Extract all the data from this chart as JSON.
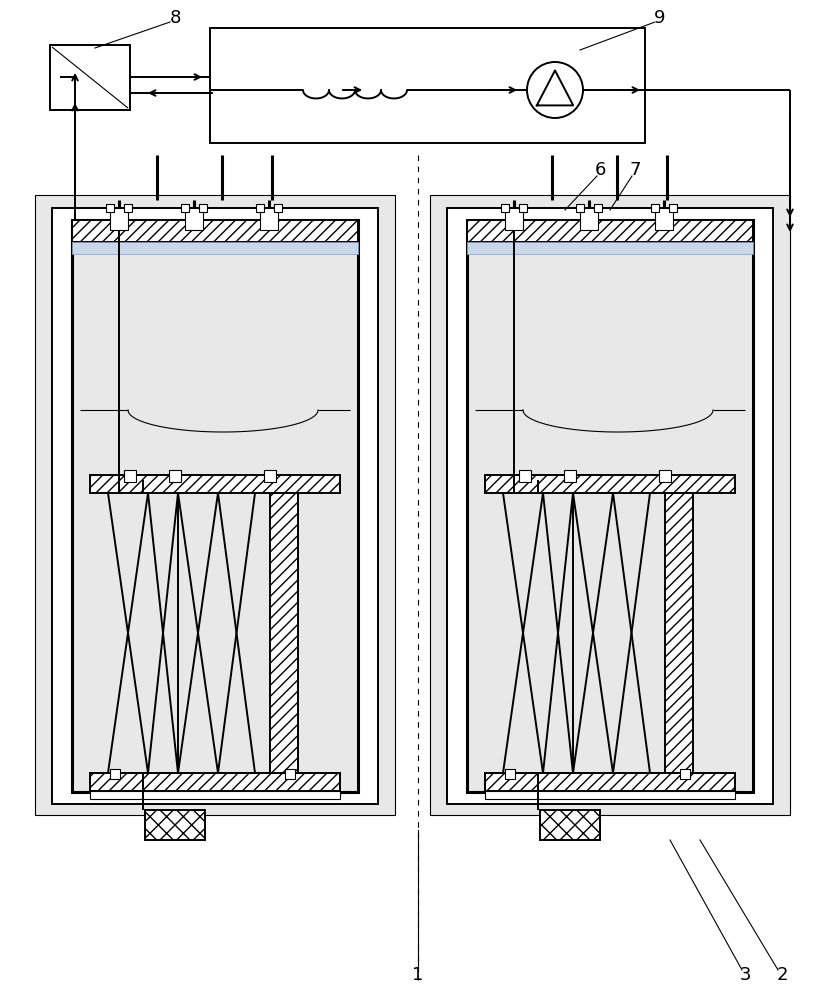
{
  "bg_color": "#ffffff",
  "line_color": "#000000",
  "light_fill": "#e8e8e8",
  "light_fill2": "#dde8f0",
  "blue_fill": "#c8d8e8",
  "figure_size": [
    8.35,
    10.0
  ],
  "dpi": 100
}
